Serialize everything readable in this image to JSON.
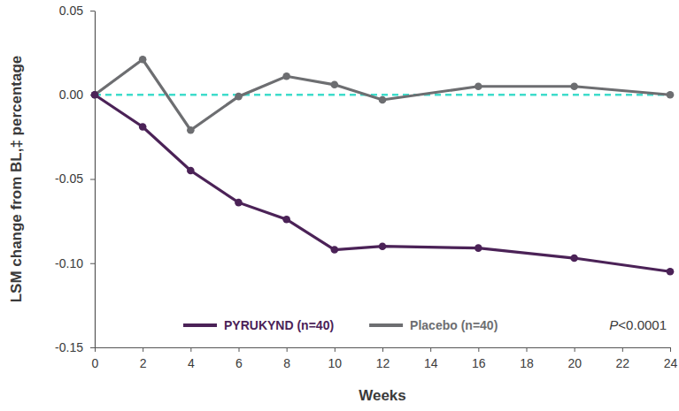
{
  "chart_data": {
    "type": "line",
    "x_label": "Weeks",
    "y_label": "LSM change from BL,‡ percentage",
    "x": [
      0,
      2,
      4,
      6,
      8,
      10,
      12,
      16,
      20,
      24
    ],
    "series": [
      {
        "name": "PYRUKYND (n=40)",
        "color": "#4b2257",
        "marker": "circle",
        "line_style": "solid",
        "values": [
          0,
          -0.019,
          -0.045,
          -0.064,
          -0.074,
          -0.092,
          -0.09,
          -0.091,
          -0.097,
          -0.105
        ]
      },
      {
        "name": "Placebo (n=40)",
        "color": "#6d6e71",
        "marker": "circle",
        "line_style": "solid",
        "values": [
          0,
          0.021,
          -0.021,
          -0.001,
          0.011,
          0.006,
          -0.003,
          0.005,
          0.005,
          0
        ]
      }
    ],
    "reference_line": 0,
    "annotation": "P<0.0001",
    "xlim": [
      0,
      24
    ],
    "xticks": [
      0,
      2,
      4,
      6,
      8,
      10,
      12,
      14,
      16,
      18,
      20,
      22,
      24
    ],
    "ylim": [
      -0.15,
      0.05
    ],
    "yticks": [
      -0.15,
      {
        "value": -0.1,
        "label": "-0.10"
      },
      -0.05,
      {
        "value": 0,
        "label": "0.00"
      },
      0.05
    ],
    "grid": false,
    "legend": "lower center"
  }
}
